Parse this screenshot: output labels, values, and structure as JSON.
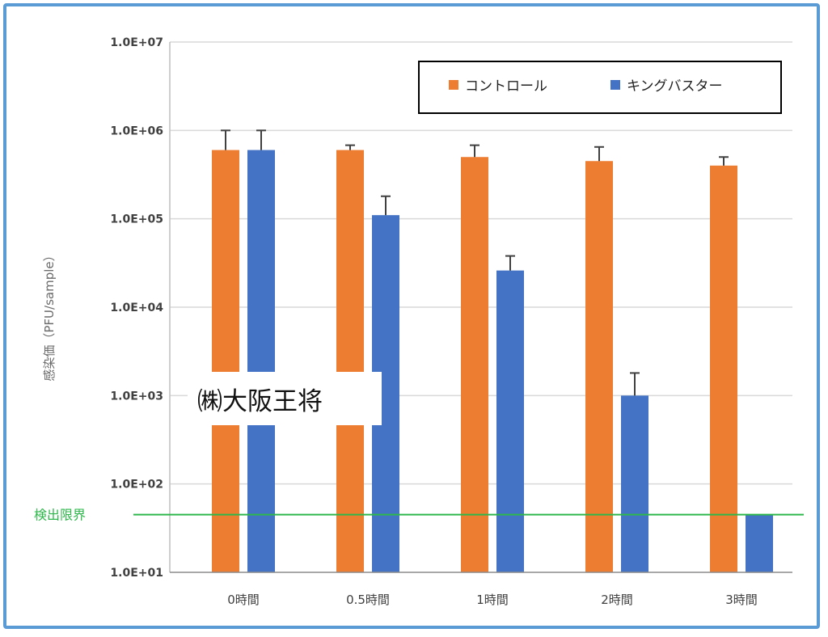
{
  "chart_data": {
    "type": "bar",
    "categories": [
      "0時間",
      "0.5時間",
      "1時間",
      "2時間",
      "3時間"
    ],
    "series": [
      {
        "name": "コントロール",
        "color": "#ed7d31",
        "values": [
          600000,
          600000,
          500000,
          450000,
          400000
        ],
        "error_upper": [
          1000000,
          680000,
          680000,
          650000,
          500000
        ]
      },
      {
        "name": "キングバスター",
        "color": "#4472c4",
        "values": [
          600000,
          110000,
          26000,
          1000,
          45
        ],
        "error_upper": [
          1000000,
          180000,
          38000,
          1800,
          45
        ]
      }
    ],
    "ylabel": "感染価（PFU/sample）",
    "ylim": [
      10,
      10000000
    ],
    "yscale": "log",
    "yticks": [
      "1.0E+01",
      "1.0E+02",
      "1.0E+03",
      "1.0E+04",
      "1.0E+05",
      "1.0E+06",
      "1.0E+07"
    ],
    "detection_limit": {
      "label": "検出限界",
      "value": 45,
      "color": "#2eb84b"
    },
    "legend_position": "top-right",
    "grid": true
  },
  "watermark": "㈱大阪王将"
}
